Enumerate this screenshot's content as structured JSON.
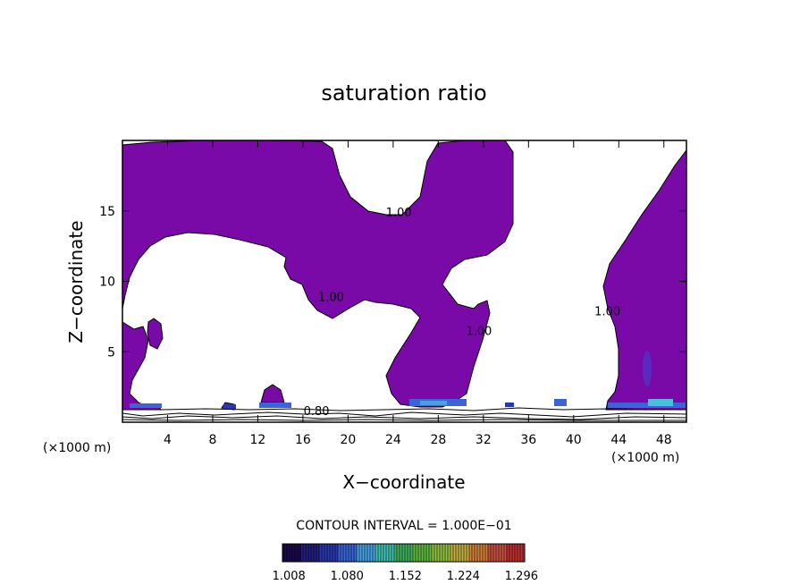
{
  "chart_data": {
    "type": "contour",
    "title": "saturation ratio",
    "xlabel": "X−coordinate",
    "ylabel": "Z−coordinate",
    "x_unit": "(×1000 m)",
    "xlim": [
      0,
      50
    ],
    "ylim": [
      0,
      20
    ],
    "xticks": [
      "4",
      "8",
      "12",
      "16",
      "20",
      "24",
      "28",
      "32",
      "36",
      "40",
      "44",
      "48"
    ],
    "yticks": [
      "5",
      "10",
      "15"
    ],
    "xtick_values": [
      4,
      8,
      12,
      16,
      20,
      24,
      28,
      32,
      36,
      40,
      44,
      48
    ],
    "ytick_values": [
      5,
      10,
      15
    ],
    "contour_labels": [
      {
        "text": "1.00",
        "x": 24.5,
        "z": 14.6
      },
      {
        "text": "1.00",
        "x": 18.5,
        "z": 8.6
      },
      {
        "text": "1.00",
        "x": 31.6,
        "z": 6.2
      },
      {
        "text": "1.00",
        "x": 43.0,
        "z": 7.6
      },
      {
        "text": "0.80",
        "x": 17.2,
        "z": 0.5
      }
    ],
    "contour_interval_text": "CONTOUR INTERVAL = 1.000E−01",
    "colorbar": {
      "tick_labels": [
        "1.008",
        "1.080",
        "1.152",
        "1.224",
        "1.296"
      ],
      "tick_values": [
        1.008,
        1.08,
        1.152,
        1.224,
        1.296
      ],
      "range": [
        1.0,
        1.3
      ],
      "colors": [
        "#1a0a4a",
        "#22207a",
        "#2a38b0",
        "#3a64d8",
        "#48a0e0",
        "#40c0b0",
        "#40b060",
        "#60b840",
        "#90c040",
        "#c0b040",
        "#d08038",
        "#c85040",
        "#c03030"
      ]
    },
    "fill_color": "#7a0aa8",
    "line_color": "#000000"
  }
}
